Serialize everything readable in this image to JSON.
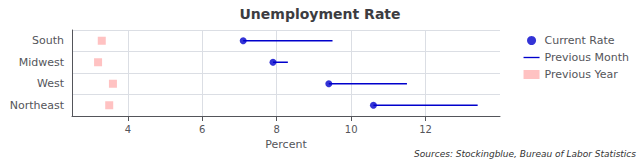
{
  "chart_data": {
    "type": "dot",
    "orientation": "horizontal",
    "title": "Unemployment Rate",
    "xlabel": "Percent",
    "annotation": "Sources: Stockingblue, Bureau of Labor Statistics",
    "categories": [
      "South",
      "Midwest",
      "West",
      "Northeast"
    ],
    "series": [
      {
        "name": "Current Rate",
        "type": "scatter",
        "marker": "circle",
        "color": "#0000cc",
        "values": [
          7.1,
          7.9,
          9.4,
          10.6
        ]
      },
      {
        "name": "Previous Month",
        "type": "range",
        "line_style": "solid",
        "color": "#0000cc",
        "values": [
          9.5,
          8.3,
          11.5,
          13.4
        ]
      },
      {
        "name": "Previous Year",
        "type": "scatter",
        "marker": "square",
        "color": "#ffb3b3",
        "values": [
          3.3,
          3.2,
          3.6,
          3.5
        ]
      }
    ],
    "xlim": [
      2.5,
      14.0
    ],
    "xticks": [
      4,
      6,
      8,
      10,
      12
    ],
    "grid": true,
    "legend": "right"
  }
}
